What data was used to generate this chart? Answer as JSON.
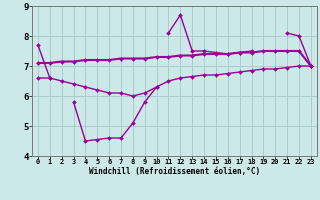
{
  "xlabel": "Windchill (Refroidissement éolien,°C)",
  "hours": [
    0,
    1,
    2,
    3,
    4,
    5,
    6,
    7,
    8,
    9,
    10,
    11,
    12,
    13,
    14,
    15,
    16,
    17,
    18,
    19,
    20,
    21,
    22,
    23
  ],
  "line1": [
    7.7,
    6.6,
    null,
    null,
    null,
    null,
    null,
    null,
    null,
    null,
    null,
    8.1,
    8.7,
    7.5,
    7.5,
    7.45,
    7.4,
    7.45,
    7.5,
    null,
    null,
    8.1,
    8.0,
    7.0
  ],
  "line2": [
    null,
    null,
    null,
    5.8,
    4.5,
    4.55,
    4.6,
    4.6,
    5.1,
    5.8,
    6.3,
    null,
    null,
    null,
    null,
    null,
    null,
    null,
    null,
    null,
    null,
    null,
    null,
    null
  ],
  "line3": [
    7.1,
    7.1,
    7.15,
    7.15,
    7.2,
    7.2,
    7.2,
    7.25,
    7.25,
    7.25,
    7.3,
    7.3,
    7.35,
    7.35,
    7.4,
    7.4,
    7.4,
    7.45,
    7.45,
    7.5,
    7.5,
    7.5,
    7.5,
    7.0
  ],
  "line4": [
    6.6,
    6.6,
    6.5,
    6.4,
    6.3,
    6.2,
    6.1,
    6.1,
    6.0,
    6.1,
    6.3,
    6.5,
    6.6,
    6.65,
    6.7,
    6.7,
    6.75,
    6.8,
    6.85,
    6.9,
    6.9,
    6.95,
    7.0,
    7.0
  ],
  "color": "#990099",
  "bg_color": "#cce8e8",
  "grid_color": "#aacccc",
  "ylim": [
    4,
    9
  ],
  "yticks": [
    4,
    5,
    6,
    7,
    8,
    9
  ],
  "xlim": [
    -0.5,
    23.5
  ]
}
